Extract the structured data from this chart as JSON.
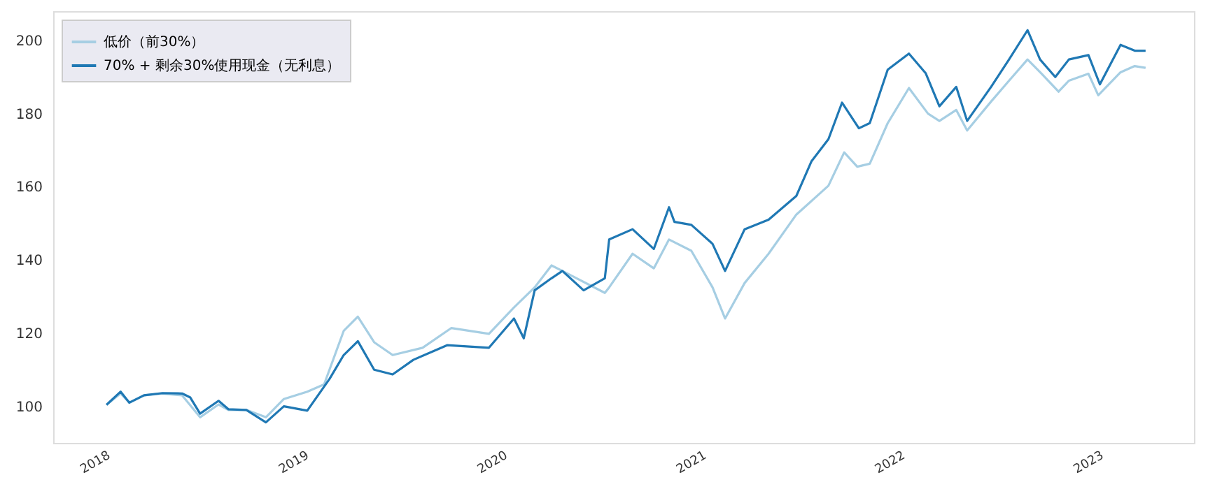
{
  "chart_data": {
    "type": "line",
    "xlim": [
      "2017-09-27",
      "2023-06-25"
    ],
    "xticks": [
      "2018",
      "2019",
      "2020",
      "2021",
      "2022",
      "2023"
    ],
    "ylim": [
      90,
      208
    ],
    "yticks": [
      100,
      120,
      140,
      160,
      180,
      200
    ],
    "grid": false,
    "legend": "top left",
    "line_style": "solid",
    "marker": "none",
    "series": [
      {
        "name": "低价（前30%）",
        "color": "#a6cee3",
        "x": [
          "2018-01-03",
          "2018-01-29",
          "2018-02-14",
          "2018-03-13",
          "2018-04-16",
          "2018-05-22",
          "2018-06-24",
          "2018-07-28",
          "2018-08-15",
          "2018-09-17",
          "2018-10-23",
          "2018-11-25",
          "2019-01-07",
          "2019-02-07",
          "2019-03-15",
          "2019-04-10",
          "2019-05-10",
          "2019-06-13",
          "2019-08-07",
          "2019-09-29",
          "2019-12-07",
          "2020-01-22",
          "2020-02-29",
          "2020-03-31",
          "2020-04-20",
          "2020-07-07",
          "2020-07-15",
          "2020-08-27",
          "2020-10-05",
          "2020-11-02",
          "2020-12-13",
          "2021-01-21",
          "2021-02-13",
          "2021-03-21",
          "2021-05-04",
          "2021-06-24",
          "2021-08-22",
          "2021-09-20",
          "2021-10-14",
          "2021-11-06",
          "2021-12-09",
          "2022-01-17",
          "2022-02-21",
          "2022-03-14",
          "2022-04-14",
          "2022-05-04",
          "2022-06-17",
          "2022-07-20",
          "2022-08-23",
          "2022-09-18",
          "2022-10-19",
          "2022-11-07",
          "2022-12-13",
          "2022-12-31",
          "2023-02-10",
          "2023-03-08",
          "2023-03-28"
        ],
        "values": [
          100.4,
          103.5,
          101,
          103,
          103.5,
          103,
          97,
          100.5,
          99,
          99,
          97,
          102,
          104,
          106,
          120.6,
          124.5,
          117.5,
          114,
          116,
          121.4,
          119.8,
          127,
          132.5,
          138.5,
          137,
          131,
          132.5,
          141.7,
          137.7,
          145.6,
          142.5,
          132.5,
          124,
          133.7,
          141.7,
          152.4,
          160.3,
          169.4,
          165.5,
          166.3,
          177.4,
          187,
          180,
          178,
          181,
          175.4,
          183.3,
          189,
          194.8,
          190.9,
          186,
          189,
          190.9,
          185,
          191.3,
          193,
          192.5
        ]
      },
      {
        "name": "70% + 剩余30%使用现金（无利息）",
        "color": "#1f78b4",
        "x": [
          "2018-01-03",
          "2018-01-29",
          "2018-02-14",
          "2018-03-13",
          "2018-04-16",
          "2018-05-22",
          "2018-06-06",
          "2018-06-24",
          "2018-07-28",
          "2018-08-15",
          "2018-09-17",
          "2018-10-23",
          "2018-11-25",
          "2019-01-07",
          "2019-02-17",
          "2019-03-15",
          "2019-04-10",
          "2019-05-10",
          "2019-06-13",
          "2019-07-21",
          "2019-09-21",
          "2019-12-07",
          "2020-01-22",
          "2020-02-09",
          "2020-02-29",
          "2020-03-31",
          "2020-04-20",
          "2020-05-29",
          "2020-07-07",
          "2020-07-15",
          "2020-08-27",
          "2020-10-05",
          "2020-11-02",
          "2020-11-12",
          "2020-12-13",
          "2021-01-21",
          "2021-02-13",
          "2021-03-21",
          "2021-05-04",
          "2021-06-24",
          "2021-07-22",
          "2021-08-22",
          "2021-09-16",
          "2021-10-17",
          "2021-11-06",
          "2021-12-09",
          "2022-01-17",
          "2022-02-17",
          "2022-03-14",
          "2022-04-14",
          "2022-05-04",
          "2022-06-17",
          "2022-07-20",
          "2022-08-23",
          "2022-09-15",
          "2022-10-13",
          "2022-11-07",
          "2022-12-13",
          "2023-01-03",
          "2023-02-10",
          "2023-03-08",
          "2023-03-28"
        ],
        "values": [
          100.4,
          104,
          101,
          103,
          103.6,
          103.5,
          102.4,
          98,
          101.5,
          99.2,
          99,
          95.6,
          100,
          98.8,
          107.5,
          114,
          117.8,
          110,
          108.7,
          112.7,
          116.7,
          116,
          124,
          118.6,
          131.7,
          135,
          137,
          131.7,
          135,
          145.6,
          148.4,
          143,
          154.4,
          150.4,
          149.6,
          144.4,
          137,
          148.4,
          151,
          157.5,
          167,
          173,
          183,
          176,
          177.4,
          192,
          196.4,
          191,
          182,
          187.3,
          178,
          187.3,
          194.8,
          202.8,
          194.8,
          190,
          194.8,
          196,
          188,
          198.8,
          197.2,
          197.2
        ]
      }
    ]
  }
}
